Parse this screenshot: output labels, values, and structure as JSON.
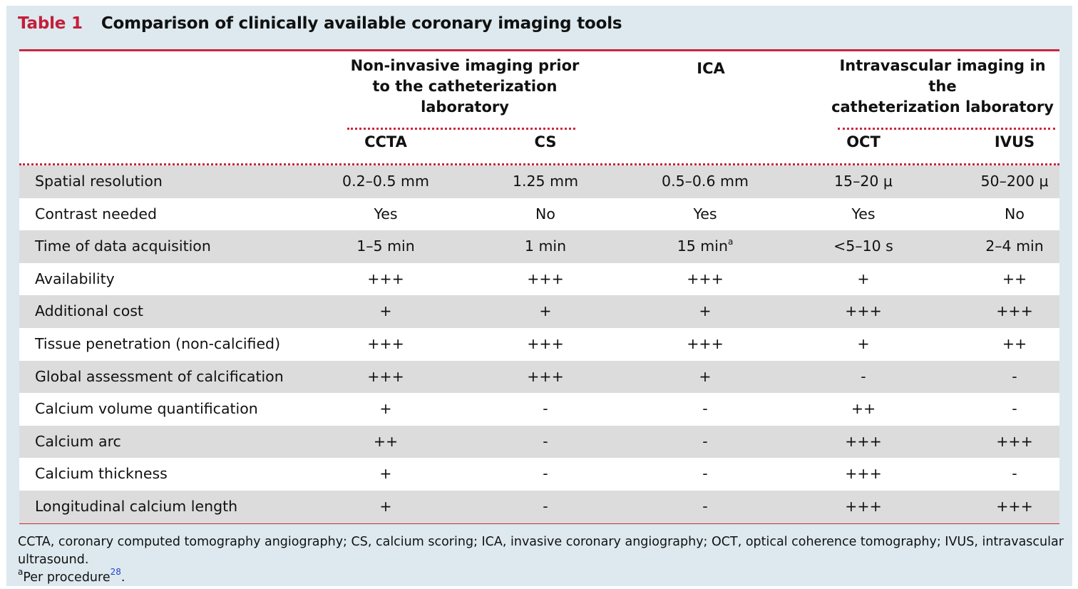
{
  "caption": {
    "label": "Table 1",
    "title": "Comparison of clinically available coronary imaging tools"
  },
  "header": {
    "groups": [
      {
        "label_lines": [
          "Non-invasive imaging prior",
          "to the catheterization",
          "laboratory"
        ]
      },
      {
        "label_lines": [
          "ICA"
        ]
      },
      {
        "label_lines": [
          "Intravascular imaging in the",
          "catheterization laboratory"
        ]
      }
    ],
    "columns": [
      "CCTA",
      "CS",
      "",
      "OCT",
      "IVUS"
    ]
  },
  "rows": [
    {
      "label": "Spatial resolution",
      "values": [
        "0.2–0.5 mm",
        "1.25 mm",
        "0.5–0.6 mm",
        "15–20 μ",
        "50–200 μ"
      ]
    },
    {
      "label": "Contrast needed",
      "values": [
        "Yes",
        "No",
        "Yes",
        "Yes",
        "No"
      ]
    },
    {
      "label": "Time of data acquisition",
      "values": [
        "1–5 min",
        "1 min",
        "15 min",
        "<5–10 s",
        "2–4 min"
      ],
      "sup": "a"
    },
    {
      "label": "Availability",
      "values": [
        "+++",
        "+++",
        "+++",
        "+",
        "++"
      ]
    },
    {
      "label": "Additional cost",
      "values": [
        "+",
        "+",
        "+",
        "+++",
        "+++"
      ]
    },
    {
      "label": "Tissue penetration (non-calcified)",
      "values": [
        "+++",
        "+++",
        "+++",
        "+",
        "++"
      ]
    },
    {
      "label": "Global assessment of calcification",
      "values": [
        "+++",
        "+++",
        "+",
        "-",
        "-"
      ]
    },
    {
      "label": "Calcium volume quantification",
      "values": [
        "+",
        "-",
        "-",
        "++",
        "-"
      ]
    },
    {
      "label": "Calcium arc",
      "values": [
        "++",
        "-",
        "-",
        "+++",
        "+++"
      ]
    },
    {
      "label": "Calcium thickness",
      "values": [
        "+",
        "-",
        "-",
        "+++",
        "-"
      ]
    },
    {
      "label": "Longitudinal calcium length",
      "values": [
        "+",
        "-",
        "-",
        "+++",
        "+++"
      ]
    }
  ],
  "footnote": {
    "abbreviations": "CCTA, coronary computed tomography angiography; CS, calcium scoring; ICA, invasive coronary angiography; OCT, optical coherence tomography; IVUS, intravascular ultrasound.",
    "marker": "a",
    "note": "Per procedure",
    "ref": "28",
    "end": "."
  },
  "colors": {
    "accent": "#c8283e",
    "caption_label": "#c31e3a",
    "panel_bg": "#dde9ef",
    "row_shade": "#dcdcdc",
    "link": "#2344c8"
  }
}
